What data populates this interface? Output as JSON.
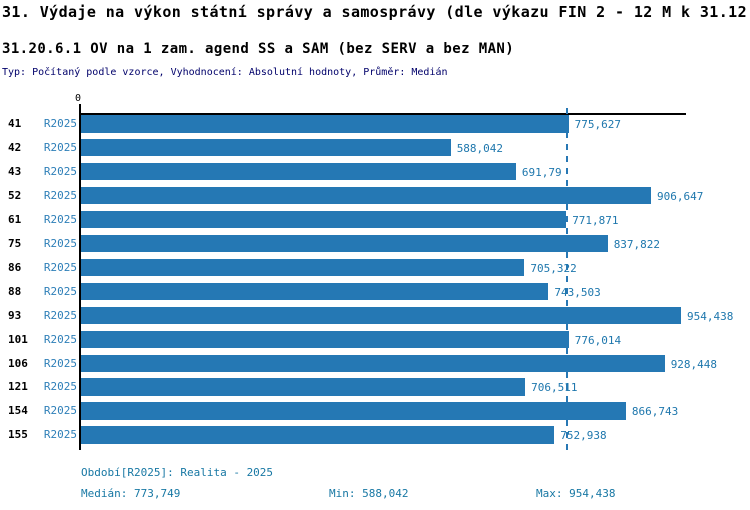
{
  "title": "31. Výdaje na výkon státní správy a samosprávy (dle výkazu FIN 2 - 12 M k 31.12.)",
  "subtitle": "31.20.6.1 OV na 1 zam. agend SS a SAM (bez SERV a bez MAN)",
  "meta_line": "Typ: Počítaný podle vzorce, Vyhodnocení: Absolutní hodnoty, Průměr: Medián",
  "colors": {
    "bar": "#2578b4",
    "median_line": "#2878b4",
    "value_text": "#1e77ad",
    "period_text": "#2e7fb8",
    "footer_text": "#1878a4",
    "meta_text": "#00006a",
    "axis": "#000000"
  },
  "chart_data": {
    "type": "bar",
    "orientation": "horizontal",
    "title": "31.20.6.1 OV na 1 zam. agend SS a SAM (bez SERV a bez MAN)",
    "axis_zero_label": "0",
    "x_tick_labels": [
      "0"
    ],
    "xlim": [
      0,
      954438
    ],
    "grid": false,
    "legend_position": "none",
    "series_name": "R2025",
    "median_value": 773749,
    "categories": [
      "41",
      "42",
      "43",
      "52",
      "61",
      "75",
      "86",
      "88",
      "93",
      "101",
      "106",
      "121",
      "154",
      "155"
    ],
    "rows": [
      {
        "id": "41",
        "period": "R2025",
        "value": 775627,
        "label": "775,627"
      },
      {
        "id": "42",
        "period": "R2025",
        "value": 588042,
        "label": "588,042"
      },
      {
        "id": "43",
        "period": "R2025",
        "value": 691790,
        "label": "691,79"
      },
      {
        "id": "52",
        "period": "R2025",
        "value": 906647,
        "label": "906,647"
      },
      {
        "id": "61",
        "period": "R2025",
        "value": 771871,
        "label": "771,871"
      },
      {
        "id": "75",
        "period": "R2025",
        "value": 837822,
        "label": "837,822"
      },
      {
        "id": "86",
        "period": "R2025",
        "value": 705322,
        "label": "705,322"
      },
      {
        "id": "88",
        "period": "R2025",
        "value": 743503,
        "label": "743,503"
      },
      {
        "id": "93",
        "period": "R2025",
        "value": 954438,
        "label": "954,438"
      },
      {
        "id": "101",
        "period": "R2025",
        "value": 776014,
        "label": "776,014"
      },
      {
        "id": "106",
        "period": "R2025",
        "value": 928448,
        "label": "928,448"
      },
      {
        "id": "121",
        "period": "R2025",
        "value": 706511,
        "label": "706,511"
      },
      {
        "id": "154",
        "period": "R2025",
        "value": 866743,
        "label": "866,743"
      },
      {
        "id": "155",
        "period": "R2025",
        "value": 752938,
        "label": "752,938"
      }
    ],
    "stats": {
      "median": 773749,
      "min": 588042,
      "max": 954438
    }
  },
  "footer": {
    "period_line": "Období[R2025]: Realita - 2025",
    "median": "Medián: 773,749",
    "min": "Min: 588,042",
    "max": "Max: 954,438"
  }
}
